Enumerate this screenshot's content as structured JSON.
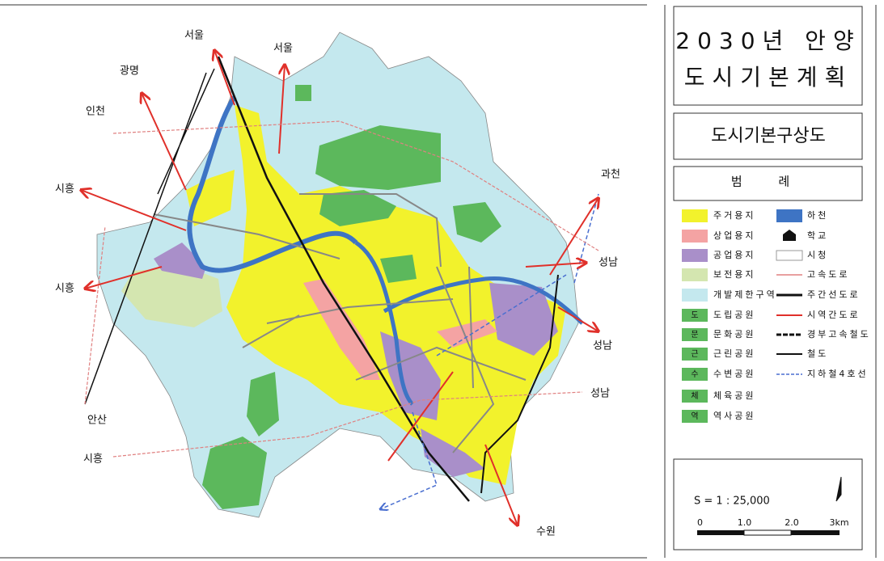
{
  "title": {
    "line1": "2030년 안양",
    "line2": "도시기본계획"
  },
  "subtitle": "도시기본구상도",
  "legend": {
    "title": "범 례",
    "left": [
      {
        "label": "주거용지",
        "color": "#f2f22c"
      },
      {
        "label": "상업용지",
        "color": "#f4a3a3"
      },
      {
        "label": "공업용지",
        "color": "#a98fc9"
      },
      {
        "label": "보전용지",
        "color": "#d4e6b0"
      },
      {
        "label": "개발제한구역",
        "color": "#c4e8ee"
      },
      {
        "label": "도립공원",
        "color": "#5cb85c",
        "icon": "도"
      },
      {
        "label": "문화공원",
        "color": "#5cb85c",
        "icon": "문"
      },
      {
        "label": "근린공원",
        "color": "#5cb85c",
        "icon": "근"
      },
      {
        "label": "수변공원",
        "color": "#5cb85c",
        "icon": "수"
      },
      {
        "label": "체육공원",
        "color": "#5cb85c",
        "icon": "체"
      },
      {
        "label": "역사공원",
        "color": "#5cb85c",
        "icon": "역"
      }
    ],
    "right": [
      "하천",
      "학교",
      "시청",
      "고속도로",
      "주간선도로",
      "시역간도로",
      "경부고속철도",
      "철도",
      "지하철4호선"
    ]
  },
  "scale": {
    "text": "S = 1 : 25,000",
    "ticks": [
      "0",
      "1.0",
      "2.0",
      "3km"
    ]
  },
  "map": {
    "places": [
      "서울",
      "서울",
      "광명",
      "인천",
      "시흥",
      "시흥",
      "과천",
      "성남",
      "성남",
      "성남",
      "안산",
      "시흥",
      "수원"
    ]
  }
}
